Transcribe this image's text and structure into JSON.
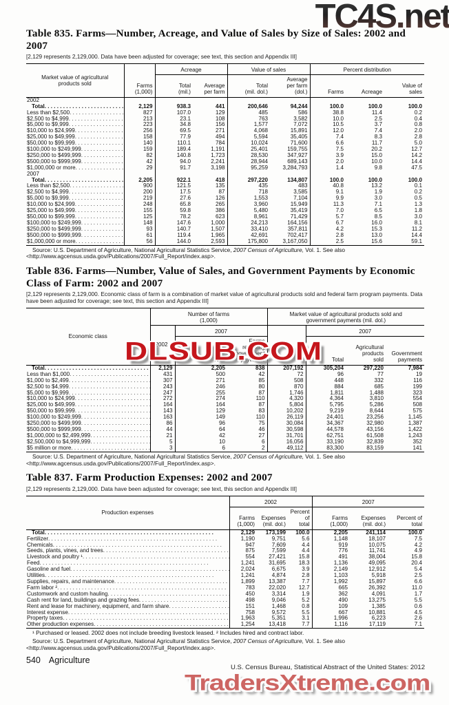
{
  "watermarks": {
    "top": "TC4S.net",
    "middle": "DLSUB.COM",
    "bottom": "TradersXtreme.com"
  },
  "source": {
    "prefix": "Source: U.S. Department of Agriculture, National Agricultural Statistics Service, ",
    "italic": "2007 Census of Agriculture,",
    "suffix": " Vol. 1. See also <http://www.agcensus.usda.gov/Publications/2007/Full_Report/index.asp>."
  },
  "table835": {
    "title": "Table 835. Farms—Number, Acreage, and Value of Sales by Size of Sales: 2002 and 2007",
    "note": "[2,129 represents 2,129,000. Data have been adjusted for coverage; see text, this section and Appendix III]",
    "stub_head": "Market value of agricultural\nproducts sold",
    "group_acreage": "Acreage",
    "group_value": "Value of sales",
    "group_pct": "Percent distribution",
    "col_farms": "Farms\n(1,000)",
    "col_acre_total": "Total\n(mil.)",
    "col_acre_avg": "Average\nper farm",
    "col_value_total": "Total\n(mil. dol.)",
    "col_value_avg": "Average\nper farm\n(dol.)",
    "col_pct_farms": "Farms",
    "col_pct_acreage": "Acreage",
    "col_pct_value": "Value of\nsales",
    "sections": [
      {
        "year": "2002",
        "rows": [
          {
            "label": "Total",
            "bold": true,
            "values": [
              "2,129",
              "938.3",
              "441",
              "200,646",
              "94,244",
              "100.0",
              "100.0",
              "100.0"
            ]
          },
          {
            "label": "Less than $2,500",
            "values": [
              "827",
              "107.0",
              "129",
              "485",
              "586",
              "38.8",
              "11.4",
              "0.2"
            ]
          },
          {
            "label": "$2,500 to $4,999",
            "values": [
              "213",
              "23.1",
              "108",
              "763",
              "3,582",
              "10.0",
              "2.5",
              "0.4"
            ]
          },
          {
            "label": "$5,000 to $9,999",
            "values": [
              "223",
              "34.8",
              "156",
              "1,577",
              "7,072",
              "10.5",
              "3.7",
              "0.8"
            ]
          },
          {
            "label": "$10,000 to $24,999",
            "values": [
              "256",
              "69.5",
              "271",
              "4,068",
              "15,891",
              "12.0",
              "7.4",
              "2.0"
            ]
          },
          {
            "label": "$25,000 to $49,999",
            "values": [
              "158",
              "77.9",
              "494",
              "5,594",
              "35,405",
              "7.4",
              "8.3",
              "2.8"
            ]
          },
          {
            "label": "$50,000 to $99,999",
            "values": [
              "140",
              "110.1",
              "784",
              "10,024",
              "71,600",
              "6.6",
              "11.7",
              "5.0"
            ]
          },
          {
            "label": "$100,000 to $249,999",
            "values": [
              "159",
              "189.4",
              "1,191",
              "25,401",
              "159,755",
              "7.5",
              "20.2",
              "12.7"
            ]
          },
          {
            "label": "$250,000 to $499,999",
            "values": [
              "82",
              "140.8",
              "1,723",
              "28,530",
              "347,927",
              "3.9",
              "15.0",
              "14.2"
            ]
          },
          {
            "label": "$500,000 to $999,999",
            "values": [
              "42",
              "94.0",
              "2,241",
              "28,944",
              "689,143",
              "2.0",
              "10.0",
              "14.4"
            ]
          },
          {
            "label": "$1,000,000 or more",
            "values": [
              "29",
              "91.7",
              "3,198",
              "95,259",
              "3,284,793",
              "1.4",
              "9.8",
              "47.5"
            ]
          }
        ]
      },
      {
        "year": "2007",
        "rows": [
          {
            "label": "Total",
            "bold": true,
            "values": [
              "2,205",
              "922.1",
              "418",
              "297,220",
              "134,807",
              "100.0",
              "100.0",
              "100.0"
            ]
          },
          {
            "label": "Less than $2,500",
            "values": [
              "900",
              "121.5",
              "135",
              "435",
              "483",
              "40.8",
              "13.2",
              "0.1"
            ]
          },
          {
            "label": "$2,500 to $4,999",
            "values": [
              "200",
              "17.5",
              "87",
              "718",
              "3,585",
              "9.1",
              "1.9",
              "0.2"
            ]
          },
          {
            "label": "$5,000 to $9,999",
            "values": [
              "219",
              "27.6",
              "126",
              "1,553",
              "7,104",
              "9.9",
              "3.0",
              "0.5"
            ]
          },
          {
            "label": "$10,000 to $24,999",
            "values": [
              "248",
              "65.8",
              "265",
              "3,960",
              "15,949",
              "11.3",
              "7.1",
              "1.3"
            ]
          },
          {
            "label": "$25,000 to $49,999",
            "values": [
              "155",
              "59.8",
              "386",
              "5,480",
              "35,419",
              "7.0",
              "6.5",
              "1.8"
            ]
          },
          {
            "label": "$50,000 to $99,999",
            "values": [
              "125",
              "78.2",
              "623",
              "8,961",
              "71,429",
              "5.7",
              "8.5",
              "3.0"
            ]
          },
          {
            "label": "$100,000 to $249,999",
            "values": [
              "148",
              "147.6",
              "1,000",
              "24,213",
              "164,156",
              "6.7",
              "16.0",
              "8.1"
            ]
          },
          {
            "label": "$250,000 to $499,999",
            "values": [
              "93",
              "140.7",
              "1,507",
              "33,410",
              "357,811",
              "4.2",
              "15.3",
              "11.2"
            ]
          },
          {
            "label": "$500,000 to $999,999",
            "values": [
              "61",
              "119.4",
              "1,965",
              "42,691",
              "702,417",
              "2.8",
              "13.0",
              "14.4"
            ]
          },
          {
            "label": "$1,000,000 or more",
            "values": [
              "56",
              "144.0",
              "2,593",
              "175,800",
              "3,167,050",
              "2.5",
              "15.6",
              "59.1"
            ]
          }
        ]
      }
    ]
  },
  "table836": {
    "title": "Table 836. Farms—Number, Value of Sales, and Government Payments by Economic Class of Farm: 2002 and 2007",
    "note": "[2,129 represents 2,129,000. Economic class of farm is a combination of market value of agricultural products sold and federal farm program payments. Data have been adjusted for coverage; see text, this section and Appendix III]",
    "stub_head": "Economic class",
    "group_farms": "Number of farms\n(1,000)",
    "group_value": "Market value of agricultural products sold and\ngovernment payments (mil. dol.)",
    "sub_2007": "2007",
    "col_2002_farms": "2002",
    "col_total_farms": "Total",
    "col_receiving": "Farms\nreceiving\ngovernment\npayments",
    "col_2002_value": "2002",
    "col_total_value": "Total",
    "col_ag_sold": "Agricultural\nproducts\nsold",
    "col_gov_pay": "Government\npayments",
    "rows": [
      {
        "label": "Total",
        "bold": true,
        "values": [
          "2,129",
          "2,205",
          "838",
          "207,192",
          "305,204",
          "297,220",
          "7,984"
        ]
      },
      {
        "label": "Less than $1,000",
        "values": [
          "431",
          "500",
          "42",
          "72",
          "96",
          "77",
          "19"
        ]
      },
      {
        "label": "$1,000 to $2,499",
        "values": [
          "307",
          "271",
          "85",
          "508",
          "448",
          "332",
          "116"
        ]
      },
      {
        "label": "$2,500 to $4,999",
        "values": [
          "243",
          "246",
          "80",
          "870",
          "884",
          "685",
          "199"
        ]
      },
      {
        "label": "$5,000 to $9,999",
        "values": [
          "247",
          "255",
          "87",
          "1,746",
          "1,811",
          "1,488",
          "323"
        ]
      },
      {
        "label": "$10,000 to $24,999",
        "values": [
          "272",
          "274",
          "110",
          "4,320",
          "4,364",
          "3,810",
          "554"
        ]
      },
      {
        "label": "$25,000 to $49,999",
        "values": [
          "164",
          "164",
          "87",
          "5,804",
          "5,795",
          "5,286",
          "508"
        ]
      },
      {
        "label": "$50,000 to $99,999",
        "values": [
          "143",
          "129",
          "83",
          "10,202",
          "9,219",
          "8,644",
          "575"
        ]
      },
      {
        "label": "$100,000 to $249,999",
        "values": [
          "163",
          "149",
          "110",
          "26,119",
          "24,401",
          "23,256",
          "1,145"
        ]
      },
      {
        "label": "$250,000 to $499,999",
        "values": [
          "86",
          "96",
          "75",
          "30,084",
          "34,367",
          "32,980",
          "1,387"
        ]
      },
      {
        "label": "$500,000 to $999,999",
        "values": [
          "44",
          "64",
          "46",
          "30,598",
          "44,578",
          "43,156",
          "1,422"
        ]
      },
      {
        "label": "$1,000,000 to $2,499,999",
        "values": [
          "21",
          "42",
          "27",
          "31,701",
          "62,751",
          "61,508",
          "1,243"
        ]
      },
      {
        "label": "$2,500,000 to $4,999,999",
        "values": [
          "5",
          "10",
          "6",
          "16,056",
          "33,190",
          "32,839",
          "352"
        ]
      },
      {
        "label": "$5 million or more",
        "values": [
          "3",
          "6",
          "2",
          "49,112",
          "83,300",
          "83,159",
          "141"
        ]
      }
    ]
  },
  "table837": {
    "title": "Table 837. Farm Production Expenses: 2002 and 2007",
    "note": "[2,129 represents 2,129,000. Data have been adjusted for coverage; see text, this section and Appendix III]",
    "stub_head": "Production expenses",
    "group_2002": "2002",
    "group_2007": "2007",
    "col_farms": "Farms\n(1,000)",
    "col_expenses": "Expenses\n(mil. dol.)",
    "col_pct": "Percent of\ntotal",
    "footnote": "¹ Purchased or leased. 2002 does not include breeding livestock leased. ² Includes hired and contract labor.",
    "rows": [
      {
        "label": "Total",
        "bold": true,
        "values": [
          "2,129",
          "173,199",
          "100.0",
          "2,205",
          "241,114",
          "100.0"
        ]
      },
      {
        "label": "Fertilizer",
        "values": [
          "1,190",
          "9,751",
          "5.6",
          "1,148",
          "18,107",
          "7.5"
        ]
      },
      {
        "label": "Chemicals",
        "values": [
          "947",
          "7,609",
          "4.4",
          "919",
          "10,075",
          "4.2"
        ]
      },
      {
        "label": "Seeds, plants, vines, and trees",
        "values": [
          "875",
          "7,599",
          "4.4",
          "776",
          "11,741",
          "4.9"
        ]
      },
      {
        "label": "Livestock and poultry ¹",
        "values": [
          "554",
          "27,421",
          "15.8",
          "491",
          "38,004",
          "15.8"
        ]
      },
      {
        "label": "Feed",
        "values": [
          "1,241",
          "31,695",
          "18.3",
          "1,136",
          "49,095",
          "20.4"
        ]
      },
      {
        "label": "Gasoline and fuel",
        "values": [
          "2,024",
          "6,675",
          "3.9",
          "2,149",
          "12,912",
          "5.4"
        ]
      },
      {
        "label": "Utilities",
        "values": [
          "1,241",
          "4,874",
          "2.8",
          "1,103",
          "5,918",
          "2.5"
        ]
      },
      {
        "label": "Supplies, repairs, and maintenance",
        "values": [
          "1,899",
          "13,387",
          "7.7",
          "1,992",
          "15,897",
          "6.6"
        ]
      },
      {
        "label": "Farm labor ²",
        "values": [
          "783",
          "22,020",
          "12.7",
          "665",
          "26,392",
          "11.0"
        ]
      },
      {
        "label": "Customwork and custom hauling",
        "values": [
          "450",
          "3,314",
          "1.9",
          "362",
          "4,091",
          "1.7"
        ]
      },
      {
        "label": "Cash rent for land, buildings and grazing fees",
        "values": [
          "498",
          "9,046",
          "5.2",
          "490",
          "13,275",
          "5.5"
        ]
      },
      {
        "label": "Rent and lease for machinery, equipment, and farm share",
        "values": [
          "151",
          "1,468",
          "0.8",
          "109",
          "1,385",
          "0.6"
        ]
      },
      {
        "label": "Interest expense",
        "values": [
          "758",
          "9,572",
          "5.5",
          "667",
          "10,881",
          "4.5"
        ]
      },
      {
        "label": "Property taxes",
        "values": [
          "1,963",
          "5,351",
          "3.1",
          "1,996",
          "6,223",
          "2.6"
        ]
      },
      {
        "label": "Other production expenses",
        "values": [
          "1,254",
          "13,418",
          "7.7",
          "1,116",
          "17,119",
          "7.1"
        ]
      }
    ]
  },
  "footer": {
    "page": "540",
    "section": "Agriculture",
    "credit": "U.S. Census Bureau, Statistical Abstract of the United States: 2012"
  }
}
